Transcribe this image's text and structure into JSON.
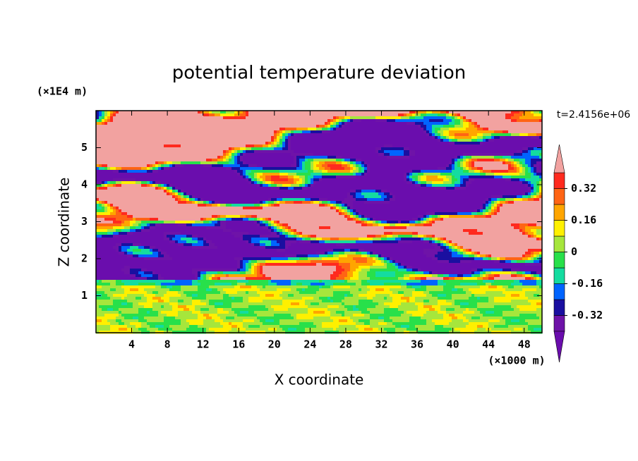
{
  "chart_data": {
    "type": "contour",
    "title": "potential temperature deviation",
    "x_label": "X coordinate",
    "y_label": "Z coordinate",
    "x_unit_label": "(×1000 m)",
    "y_unit_label": "(×1E4 m)",
    "annotation": "t=2.4156e+06",
    "xlim": [
      0,
      50
    ],
    "xticks": [
      4,
      8,
      12,
      16,
      20,
      24,
      28,
      32,
      36,
      40,
      44,
      48
    ],
    "ylim": [
      0,
      6
    ],
    "yticks": [
      1,
      2,
      3,
      4,
      5
    ],
    "colorbar": {
      "levels": [
        -0.4,
        -0.32,
        -0.24,
        -0.16,
        -0.08,
        0,
        0.08,
        0.16,
        0.24,
        0.32,
        0.4
      ],
      "colors": [
        "#6e13a8",
        "#1a0fa0",
        "#0064ff",
        "#14dca0",
        "#28e04a",
        "#a6e63c",
        "#fff000",
        "#ffa500",
        "#ff6414",
        "#ff2a1e"
      ],
      "under_color": "#6a0dad",
      "over_color": "#f2a2a0",
      "ticks": [
        -0.32,
        -0.16,
        0,
        0.16,
        0.32
      ]
    }
  }
}
